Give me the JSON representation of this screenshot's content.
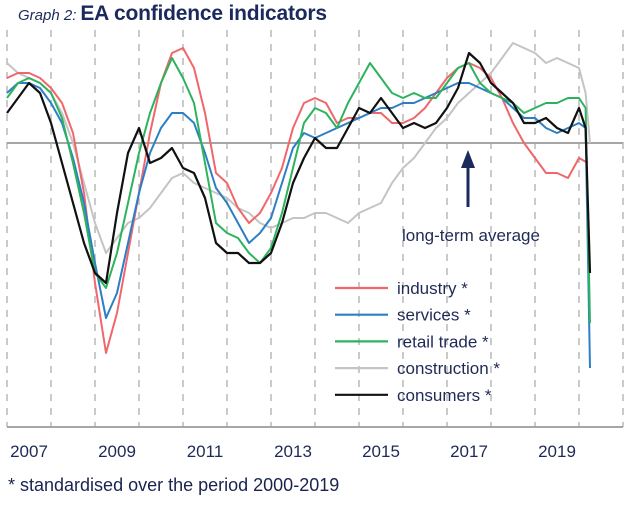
{
  "header": {
    "prefix": "Graph 2:",
    "title": "EA confidence  indicators"
  },
  "footnote": "* standardised over the period 2000-2019",
  "chart_data": {
    "type": "line",
    "title": "EA confidence indicators",
    "xlabel": "",
    "ylabel": "",
    "x_range": [
      2007.0,
      2021.0
    ],
    "ylim": [
      -4.6,
      2.1
    ],
    "grid": "vertical dashed lines at each year",
    "reference_line": {
      "value": 0,
      "label": "long-term average"
    },
    "x_tick_labels": [
      "2007",
      "2009",
      "2011",
      "2013",
      "2015",
      "2017",
      "2019"
    ],
    "x_tick_positions": [
      2007.5,
      2009.5,
      2011.5,
      2013.5,
      2015.5,
      2017.5,
      2019.5
    ],
    "legend_position": "bottom-right",
    "annotation": "long-term average",
    "series": [
      {
        "name": "industry *",
        "color": "#f0676b",
        "x": [
          2007.0,
          2007.25,
          2007.5,
          2007.75,
          2008.0,
          2008.25,
          2008.5,
          2008.75,
          2009.0,
          2009.25,
          2009.5,
          2009.75,
          2010.0,
          2010.25,
          2010.5,
          2010.75,
          2011.0,
          2011.25,
          2011.5,
          2011.75,
          2012.0,
          2012.25,
          2012.5,
          2012.75,
          2013.0,
          2013.25,
          2013.5,
          2013.75,
          2014.0,
          2014.25,
          2014.5,
          2014.75,
          2015.0,
          2015.25,
          2015.5,
          2015.75,
          2016.0,
          2016.25,
          2016.5,
          2016.75,
          2017.0,
          2017.25,
          2017.5,
          2017.75,
          2018.0,
          2018.25,
          2018.5,
          2018.75,
          2019.0,
          2019.25,
          2019.5,
          2019.75,
          2020.0,
          2020.2
        ],
        "values": [
          1.3,
          1.4,
          1.4,
          1.3,
          1.1,
          0.8,
          0.2,
          -1.0,
          -2.8,
          -4.2,
          -3.4,
          -2.2,
          -1.0,
          0.2,
          1.2,
          1.8,
          1.9,
          1.5,
          0.6,
          -0.6,
          -0.8,
          -1.3,
          -1.6,
          -1.4,
          -1.0,
          -0.5,
          0.3,
          0.8,
          0.9,
          0.8,
          0.4,
          0.5,
          0.5,
          0.6,
          0.6,
          0.4,
          0.4,
          0.5,
          0.7,
          1.0,
          1.3,
          1.5,
          1.6,
          1.5,
          1.3,
          0.9,
          0.4,
          0.0,
          -0.3,
          -0.6,
          -0.6,
          -0.7,
          -0.3,
          -0.4
        ]
      },
      {
        "name": "services *",
        "color": "#2c7fc4",
        "x": [
          2007.0,
          2007.25,
          2007.5,
          2007.75,
          2008.0,
          2008.25,
          2008.5,
          2008.75,
          2009.0,
          2009.25,
          2009.5,
          2009.75,
          2010.0,
          2010.25,
          2010.5,
          2010.75,
          2011.0,
          2011.25,
          2011.5,
          2011.75,
          2012.0,
          2012.25,
          2012.5,
          2012.75,
          2013.0,
          2013.25,
          2013.5,
          2013.75,
          2014.0,
          2014.25,
          2014.5,
          2014.75,
          2015.0,
          2015.25,
          2015.5,
          2015.75,
          2016.0,
          2016.25,
          2016.5,
          2016.75,
          2017.0,
          2017.25,
          2017.5,
          2017.75,
          2018.0,
          2018.25,
          2018.5,
          2018.75,
          2019.0,
          2019.25,
          2019.5,
          2019.75,
          2020.0,
          2020.15,
          2020.25
        ],
        "values": [
          1.0,
          1.2,
          1.2,
          1.1,
          0.8,
          0.4,
          -0.3,
          -1.2,
          -2.4,
          -3.5,
          -3.0,
          -2.0,
          -1.0,
          -0.2,
          0.3,
          0.6,
          0.6,
          0.4,
          -0.2,
          -0.9,
          -1.2,
          -1.6,
          -2.0,
          -1.8,
          -1.5,
          -0.8,
          -0.1,
          0.2,
          0.1,
          0.2,
          0.3,
          0.4,
          0.5,
          0.6,
          0.7,
          0.7,
          0.8,
          0.8,
          0.9,
          1.0,
          1.1,
          1.2,
          1.2,
          1.1,
          1.0,
          0.9,
          0.7,
          0.5,
          0.5,
          0.3,
          0.2,
          0.3,
          0.4,
          0.3,
          -4.5
        ]
      },
      {
        "name": "retail trade *",
        "color": "#2db35d",
        "x": [
          2007.0,
          2007.25,
          2007.5,
          2007.75,
          2008.0,
          2008.25,
          2008.5,
          2008.75,
          2009.0,
          2009.25,
          2009.5,
          2009.75,
          2010.0,
          2010.25,
          2010.5,
          2010.75,
          2011.0,
          2011.25,
          2011.5,
          2011.75,
          2012.0,
          2012.25,
          2012.5,
          2012.75,
          2013.0,
          2013.25,
          2013.5,
          2013.75,
          2014.0,
          2014.25,
          2014.5,
          2014.75,
          2015.0,
          2015.25,
          2015.5,
          2015.75,
          2016.0,
          2016.25,
          2016.5,
          2016.75,
          2017.0,
          2017.25,
          2017.5,
          2017.75,
          2018.0,
          2018.25,
          2018.5,
          2018.75,
          2019.0,
          2019.25,
          2019.5,
          2019.75,
          2020.0,
          2020.15,
          2020.25
        ],
        "values": [
          0.9,
          1.2,
          1.3,
          1.2,
          1.0,
          0.5,
          -0.4,
          -1.4,
          -2.6,
          -2.9,
          -2.2,
          -1.2,
          -0.2,
          0.6,
          1.2,
          1.7,
          1.3,
          0.8,
          -0.4,
          -1.6,
          -1.8,
          -1.9,
          -2.2,
          -2.4,
          -2.1,
          -1.4,
          -0.5,
          0.4,
          0.7,
          0.6,
          0.3,
          0.8,
          1.2,
          1.6,
          1.3,
          1.0,
          0.9,
          1.0,
          0.9,
          0.9,
          1.2,
          1.5,
          1.6,
          1.2,
          1.0,
          0.9,
          0.8,
          0.6,
          0.7,
          0.8,
          0.8,
          0.9,
          0.9,
          0.7,
          -3.6
        ]
      },
      {
        "name": "construction *",
        "color": "#c4c4c4",
        "x": [
          2007.0,
          2007.25,
          2007.5,
          2007.75,
          2008.0,
          2008.25,
          2008.5,
          2008.75,
          2009.0,
          2009.25,
          2009.5,
          2009.75,
          2010.0,
          2010.25,
          2010.5,
          2010.75,
          2011.0,
          2011.25,
          2011.5,
          2011.75,
          2012.0,
          2012.25,
          2012.5,
          2012.75,
          2013.0,
          2013.25,
          2013.5,
          2013.75,
          2014.0,
          2014.25,
          2014.5,
          2014.75,
          2015.0,
          2015.25,
          2015.5,
          2015.75,
          2016.0,
          2016.25,
          2016.5,
          2016.75,
          2017.0,
          2017.25,
          2017.5,
          2017.75,
          2018.0,
          2018.25,
          2018.5,
          2018.75,
          2019.0,
          2019.25,
          2019.5,
          2019.75,
          2020.0,
          2020.15,
          2020.25
        ],
        "values": [
          1.6,
          1.4,
          1.3,
          1.2,
          1.0,
          0.6,
          0.0,
          -0.8,
          -1.6,
          -2.2,
          -1.9,
          -1.6,
          -1.5,
          -1.3,
          -1.0,
          -0.7,
          -0.6,
          -0.8,
          -0.9,
          -1.0,
          -1.1,
          -1.3,
          -1.4,
          -1.6,
          -1.7,
          -1.6,
          -1.5,
          -1.5,
          -1.4,
          -1.4,
          -1.5,
          -1.6,
          -1.4,
          -1.3,
          -1.2,
          -0.8,
          -0.5,
          -0.3,
          0.0,
          0.3,
          0.5,
          0.8,
          1.0,
          1.2,
          1.4,
          1.7,
          2.0,
          1.9,
          1.8,
          1.6,
          1.7,
          1.6,
          1.5,
          1.0,
          0.0
        ]
      },
      {
        "name": "consumers *",
        "color": "#111111",
        "x": [
          2007.0,
          2007.25,
          2007.5,
          2007.75,
          2008.0,
          2008.25,
          2008.5,
          2008.75,
          2009.0,
          2009.25,
          2009.5,
          2009.75,
          2010.0,
          2010.25,
          2010.5,
          2010.75,
          2011.0,
          2011.25,
          2011.5,
          2011.75,
          2012.0,
          2012.25,
          2012.5,
          2012.75,
          2013.0,
          2013.25,
          2013.5,
          2013.75,
          2014.0,
          2014.25,
          2014.5,
          2014.75,
          2015.0,
          2015.25,
          2015.5,
          2015.75,
          2016.0,
          2016.25,
          2016.5,
          2016.75,
          2017.0,
          2017.25,
          2017.5,
          2017.75,
          2018.0,
          2018.25,
          2018.5,
          2018.75,
          2019.0,
          2019.25,
          2019.5,
          2019.75,
          2020.0,
          2020.15,
          2020.25
        ],
        "values": [
          0.6,
          0.9,
          1.2,
          1.0,
          0.4,
          -0.4,
          -1.2,
          -2.0,
          -2.6,
          -2.8,
          -1.4,
          -0.2,
          0.3,
          -0.4,
          -0.3,
          -0.1,
          -0.5,
          -0.6,
          -1.1,
          -2.0,
          -2.2,
          -2.2,
          -2.4,
          -2.4,
          -2.2,
          -1.6,
          -0.8,
          -0.3,
          0.1,
          -0.1,
          -0.1,
          0.3,
          0.7,
          0.6,
          0.9,
          0.6,
          0.3,
          0.4,
          0.3,
          0.4,
          0.7,
          1.1,
          1.8,
          1.6,
          1.2,
          1.0,
          0.8,
          0.4,
          0.4,
          0.5,
          0.3,
          0.2,
          0.7,
          0.3,
          -2.6
        ]
      }
    ]
  }
}
